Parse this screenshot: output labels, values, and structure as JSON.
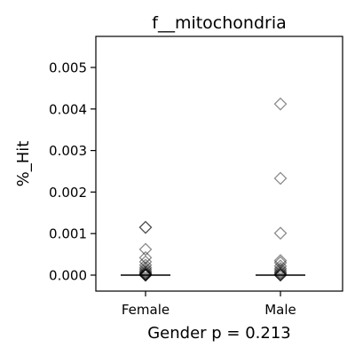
{
  "chart_data": {
    "type": "scatter",
    "title": "f__mitochondria",
    "xlabel": "Gender p = 0.213",
    "ylabel": "%_Hit",
    "categories": [
      "Female",
      "Male"
    ],
    "ylim": [
      -0.0004,
      0.0058
    ],
    "yticks": [
      0.0,
      0.001,
      0.002,
      0.003,
      0.004,
      0.005
    ],
    "ytick_labels": [
      "0.000",
      "0.001",
      "0.002",
      "0.003",
      "0.004",
      "0.005"
    ],
    "grid": false,
    "marker": "diamond-open",
    "medians": [
      0.0,
      0.0
    ],
    "series": [
      {
        "category": "Female",
        "values": [
          0.00115,
          0.00115,
          0.00062,
          0.00042,
          0.00032,
          0.00024,
          0.00018,
          0.00014,
          0.0001,
          7e-05,
          5e-05,
          3e-05,
          2e-05,
          1e-05,
          0.0,
          0.0,
          0.0
        ]
      },
      {
        "category": "Male",
        "values": [
          0.00412,
          0.00233,
          0.00101,
          0.00035,
          0.0003,
          0.00022,
          0.00016,
          0.00012,
          8e-05,
          5e-05,
          3e-05,
          1e-05,
          0.0,
          0.0
        ]
      }
    ]
  }
}
